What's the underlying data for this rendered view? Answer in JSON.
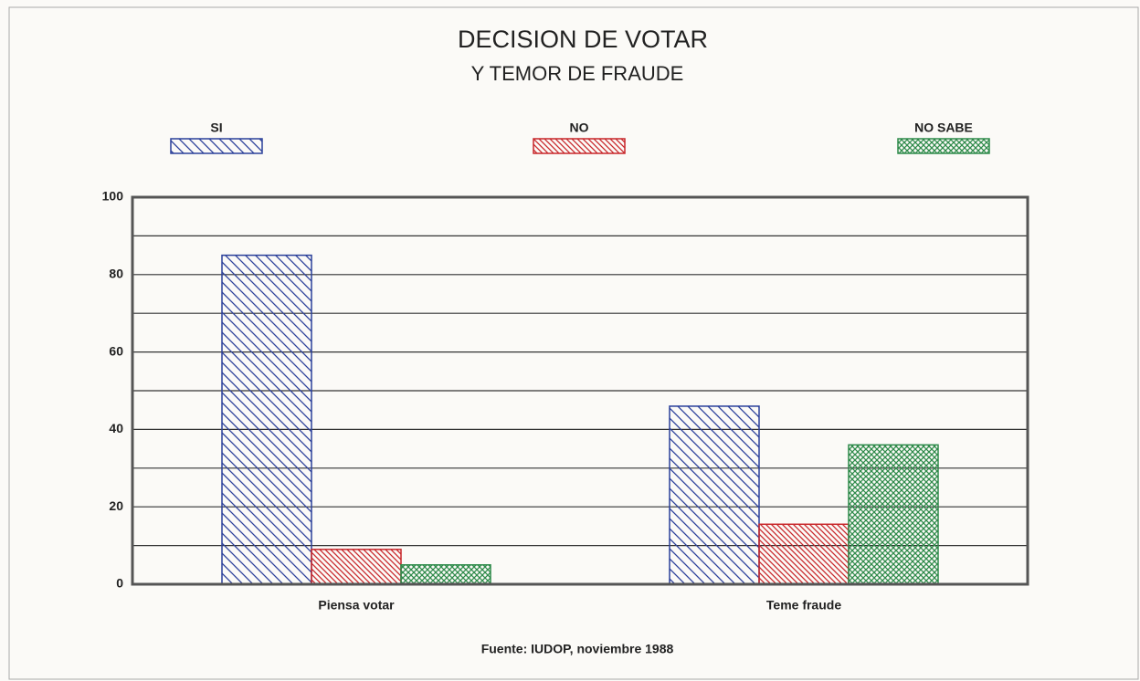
{
  "chart_data": {
    "type": "bar",
    "title": "DECISION DE VOTAR",
    "subtitle": "Y TEMOR DE FRAUDE",
    "source": "Fuente:  IUDOP, noviembre 1988",
    "categories": [
      "Piensa votar",
      "Teme fraude"
    ],
    "series": [
      {
        "name": "SI",
        "color": "#2a3f9a",
        "hatch": "diagonal",
        "values": [
          85,
          46
        ]
      },
      {
        "name": "NO",
        "color": "#c8262a",
        "hatch": "dense-diagonal",
        "values": [
          9,
          15.5
        ]
      },
      {
        "name": "NO SABE",
        "color": "#2e8a4a",
        "hatch": "crosshatch",
        "values": [
          5,
          36
        ]
      }
    ],
    "ylim": [
      0,
      100
    ],
    "yticks": [
      0,
      20,
      40,
      60,
      80,
      100
    ],
    "minor_yticks": [
      10,
      30,
      50,
      70,
      90
    ],
    "grid": true,
    "legend": "top"
  }
}
